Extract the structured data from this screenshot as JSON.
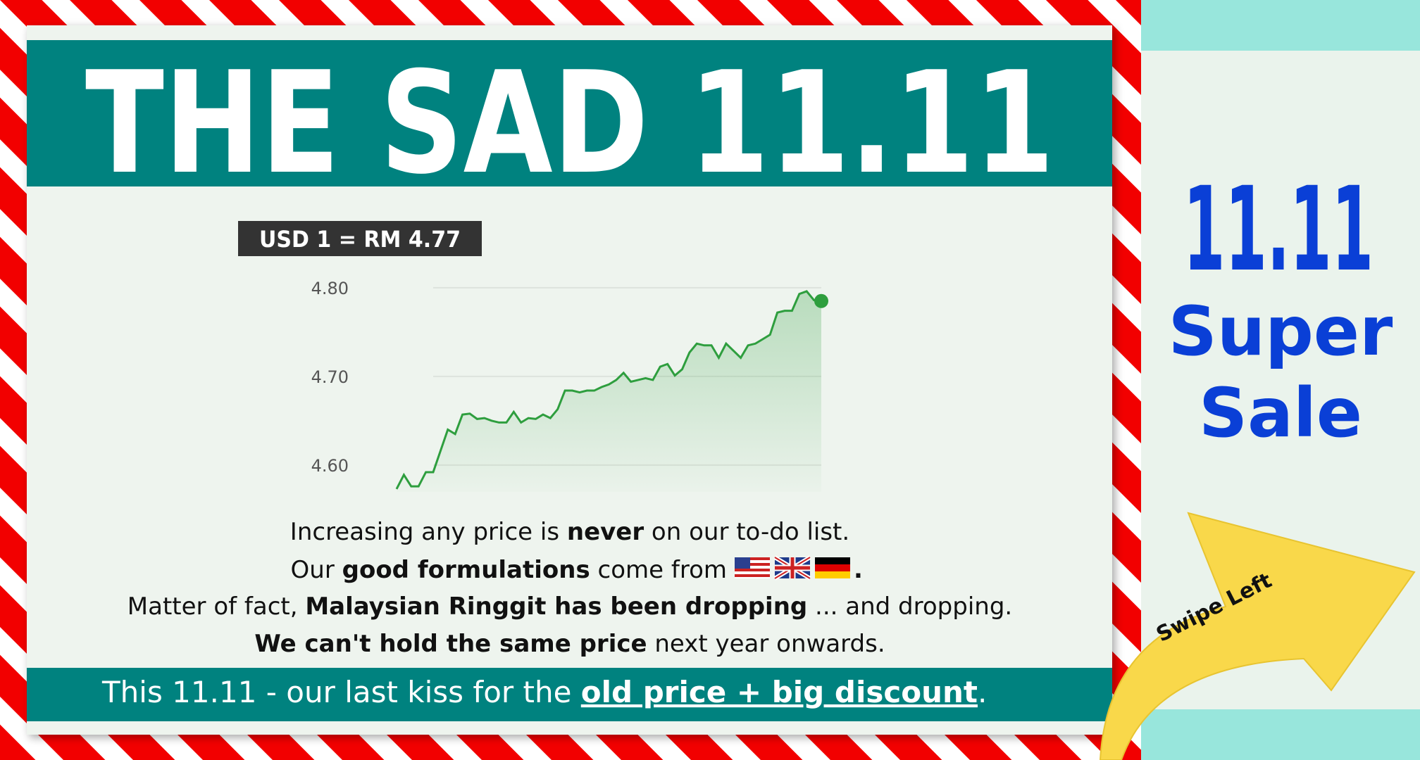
{
  "header": {
    "title": "THE SAD 11.11"
  },
  "badge": "USD 1 = RM 4.77",
  "chart_data": {
    "type": "line",
    "color": "#2e9e3e",
    "values": [
      4.573,
      4.589,
      4.576,
      4.576,
      4.592,
      4.592,
      4.616,
      4.64,
      4.635,
      4.657,
      4.658,
      4.652,
      4.653,
      4.65,
      4.648,
      4.648,
      4.66,
      4.648,
      4.653,
      4.652,
      4.657,
      4.653,
      4.663,
      4.684,
      4.684,
      4.682,
      4.684,
      4.684,
      4.688,
      4.691,
      4.696,
      4.704,
      4.694,
      4.696,
      4.698,
      4.696,
      4.711,
      4.714,
      4.701,
      4.708,
      4.727,
      4.737,
      4.735,
      4.735,
      4.721,
      4.737,
      4.729,
      4.721,
      4.735,
      4.737,
      4.742,
      4.747,
      4.772,
      4.774,
      4.774,
      4.793,
      4.796,
      4.786,
      4.785
    ],
    "ylim": [
      4.57,
      4.81
    ],
    "yticks": [
      {
        "value": 4.6,
        "label": "4.60"
      },
      {
        "value": 4.7,
        "label": "4.70"
      },
      {
        "value": 4.8,
        "label": "4.80"
      }
    ],
    "grid": true
  },
  "body": {
    "lines": [
      [
        "Increasing any price is ",
        "never",
        " on our to-do list."
      ],
      [
        "Our ",
        "good formulations",
        " come from ",
        "."
      ],
      [
        "Matter of fact, ",
        "Malaysian Ringgit has been dropping",
        " ... and dropping."
      ],
      [
        "We can't hold the same price",
        " next year onwards."
      ]
    ]
  },
  "footer": [
    "This 11.11  - our last kiss for the ",
    "old price + big discount",
    "."
  ],
  "side": {
    "number": "11.11",
    "line1": "Super",
    "line2": "Sale",
    "arrow": "Swipe Left"
  }
}
